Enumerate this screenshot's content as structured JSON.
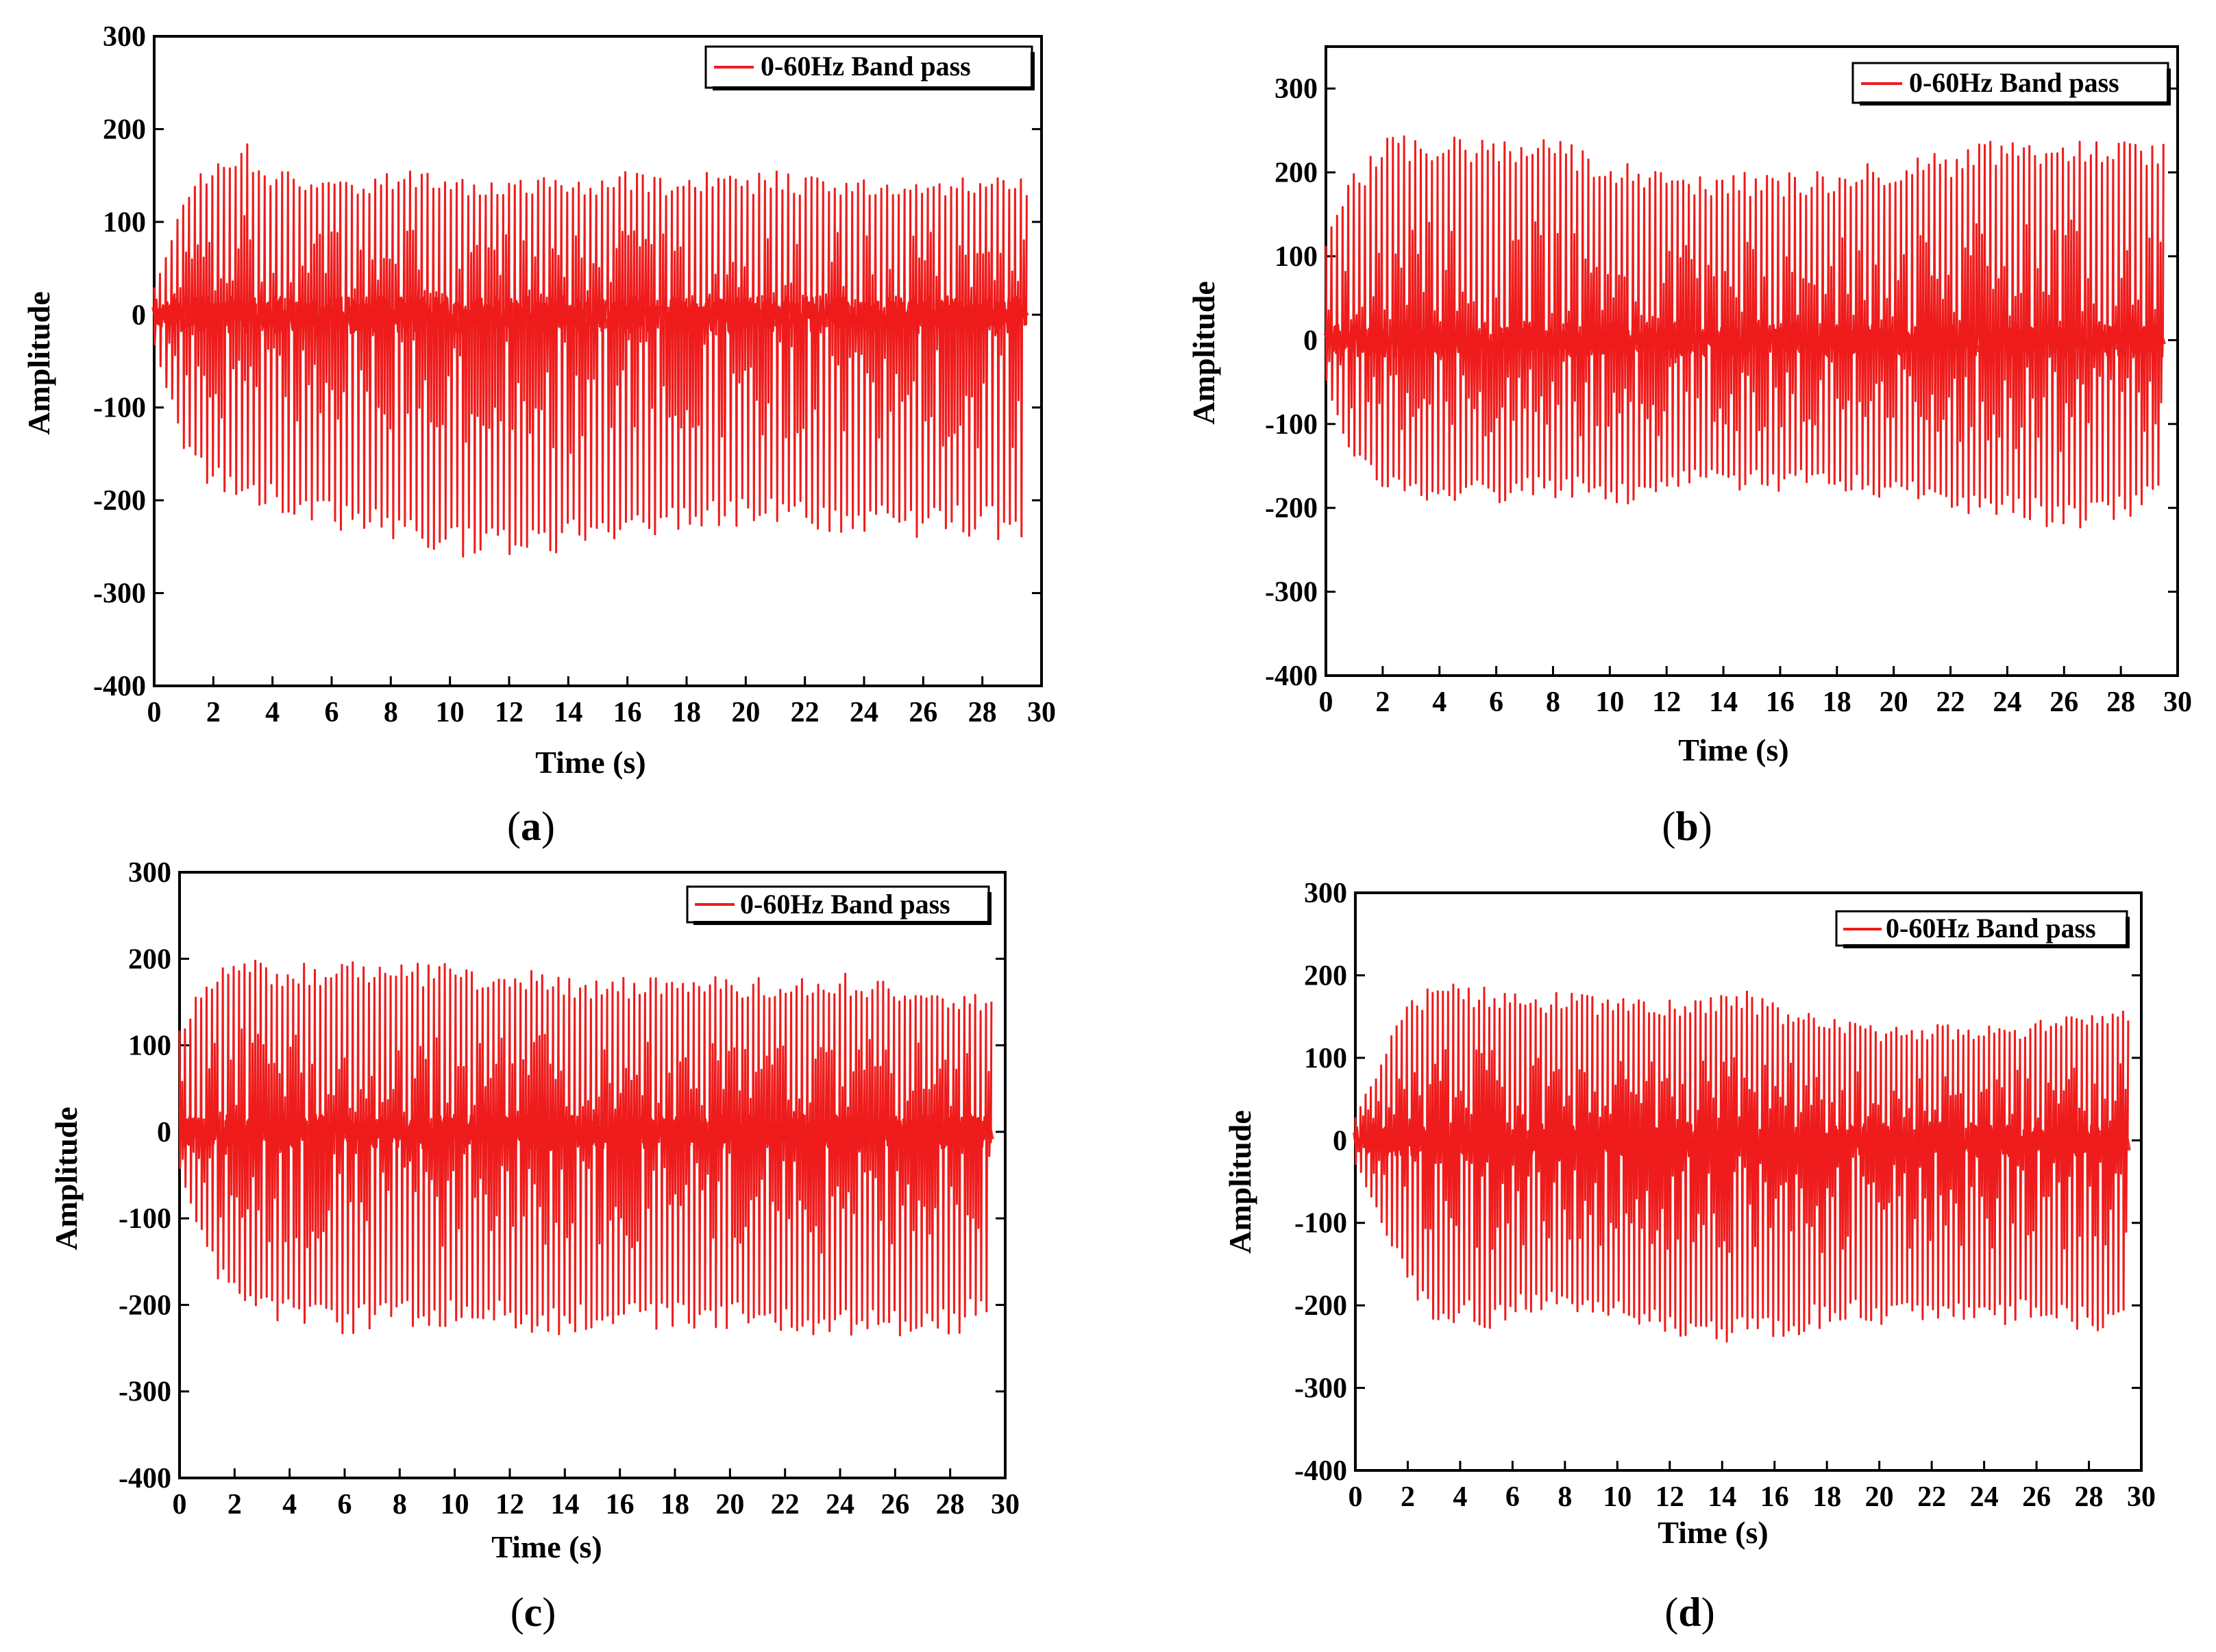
{
  "chart_data": [
    {
      "type": "line",
      "panel": "a",
      "caption_letter": "a",
      "legend": "0-60Hz Band pass",
      "xlabel": "Time (s)",
      "ylabel": "Amplitude",
      "xlim": [
        0,
        30
      ],
      "ylim": [
        -400,
        300
      ],
      "xticks": [
        "0",
        "2",
        "4",
        "6",
        "8",
        "10",
        "12",
        "14",
        "16",
        "18",
        "20",
        "22",
        "24",
        "26",
        "28",
        "30"
      ],
      "yticks": [
        "300",
        "200",
        "100",
        "0",
        "-100",
        "-200",
        "-300",
        "-400"
      ],
      "series": [
        {
          "name": "0-60Hz Band pass",
          "color": "#ee1c1c",
          "x": [
            0,
            1,
            2,
            3,
            4,
            5,
            6,
            7,
            8,
            9,
            10,
            11,
            12,
            13,
            14,
            15,
            16,
            17,
            18,
            19,
            20,
            21,
            22,
            23,
            24,
            25,
            26,
            27,
            28,
            29,
            29.5
          ],
          "upper": [
            30,
            135,
            170,
            190,
            160,
            155,
            155,
            150,
            155,
            155,
            150,
            150,
            150,
            150,
            150,
            150,
            155,
            150,
            150,
            155,
            150,
            155,
            150,
            150,
            150,
            150,
            150,
            150,
            150,
            150,
            150
          ],
          "lower": [
            -30,
            -150,
            -190,
            -200,
            -210,
            -220,
            -235,
            -240,
            -250,
            -255,
            -260,
            -270,
            -265,
            -260,
            -255,
            -245,
            -240,
            -240,
            -235,
            -235,
            -230,
            -230,
            -230,
            -235,
            -235,
            -240,
            -240,
            -240,
            -240,
            -245,
            -245
          ]
        }
      ]
    },
    {
      "type": "line",
      "panel": "b",
      "caption_letter": "b",
      "legend": "0-60Hz Band pass",
      "xlabel": "Time (s)",
      "ylabel": "Amplitude",
      "xlim": [
        0,
        30
      ],
      "ylim": [
        -400,
        350
      ],
      "xticks": [
        "0",
        "2",
        "4",
        "6",
        "8",
        "10",
        "12",
        "14",
        "16",
        "18",
        "20",
        "22",
        "24",
        "26",
        "28",
        "30"
      ],
      "yticks": [
        "300",
        "200",
        "100",
        "0",
        "-100",
        "-200",
        "-300",
        "-400"
      ],
      "series": [
        {
          "name": "0-60Hz Band pass",
          "color": "#ee1c1c",
          "x": [
            0,
            1,
            2,
            3,
            4,
            5,
            6,
            7,
            8,
            9,
            10,
            11,
            12,
            13,
            14,
            15,
            16,
            17,
            18,
            19,
            20,
            21,
            22,
            23,
            24,
            25,
            26,
            27,
            28,
            29,
            29.5
          ],
          "upper": [
            130,
            200,
            240,
            245,
            245,
            245,
            245,
            245,
            240,
            230,
            220,
            210,
            205,
            200,
            200,
            200,
            200,
            200,
            205,
            210,
            215,
            220,
            225,
            240,
            235,
            235,
            240,
            240,
            240,
            240,
            240
          ],
          "lower": [
            -50,
            -150,
            -180,
            -190,
            -195,
            -195,
            -195,
            -190,
            -190,
            -190,
            -195,
            -200,
            -185,
            -180,
            -180,
            -180,
            -180,
            -180,
            -185,
            -185,
            -190,
            -195,
            -200,
            -210,
            -215,
            -220,
            -225,
            -225,
            -215,
            -200,
            -190
          ]
        }
      ]
    },
    {
      "type": "line",
      "panel": "c",
      "caption_letter": "c",
      "legend": "0-60Hz Band pass",
      "xlabel": "Time (s)",
      "ylabel": "Amplitude",
      "xlim": [
        0,
        30
      ],
      "ylim": [
        -400,
        300
      ],
      "xticks": [
        "0",
        "2",
        "4",
        "6",
        "8",
        "10",
        "12",
        "14",
        "16",
        "18",
        "20",
        "22",
        "24",
        "26",
        "28",
        "30"
      ],
      "yticks": [
        "300",
        "200",
        "100",
        "0",
        "-100",
        "-200",
        "-300",
        "-400"
      ],
      "series": [
        {
          "name": "0-60Hz Band pass",
          "color": "#ee1c1c",
          "x": [
            0,
            1,
            2,
            3,
            4,
            5,
            6,
            7,
            8,
            9,
            10,
            11,
            12,
            13,
            14,
            15,
            16,
            17,
            18,
            19,
            20,
            21,
            22,
            23,
            24,
            25,
            26,
            27,
            28,
            29,
            29.5
          ],
          "upper": [
            130,
            175,
            205,
            200,
            195,
            195,
            195,
            200,
            195,
            195,
            195,
            190,
            190,
            190,
            180,
            180,
            180,
            180,
            180,
            180,
            180,
            180,
            180,
            180,
            185,
            180,
            175,
            170,
            165,
            160,
            160
          ],
          "lower": [
            -40,
            -150,
            -200,
            -220,
            -225,
            -230,
            -235,
            -230,
            -230,
            -225,
            -225,
            -225,
            -230,
            -235,
            -235,
            -230,
            -230,
            -230,
            -230,
            -230,
            -230,
            -230,
            -230,
            -235,
            -240,
            -240,
            -240,
            -240,
            -240,
            -220,
            -215
          ]
        }
      ]
    },
    {
      "type": "line",
      "panel": "d",
      "caption_letter": "d",
      "legend": "0-60Hz Band pass",
      "xlabel": "Time (s)",
      "ylabel": "Amplitude",
      "xlim": [
        0,
        30
      ],
      "ylim": [
        -400,
        300
      ],
      "xticks": [
        "0",
        "2",
        "4",
        "6",
        "8",
        "10",
        "12",
        "14",
        "16",
        "18",
        "20",
        "22",
        "24",
        "26",
        "28",
        "30"
      ],
      "yticks": [
        "300",
        "200",
        "100",
        "0",
        "-100",
        "-200",
        "-300",
        "-400"
      ],
      "series": [
        {
          "name": "0-60Hz Band pass",
          "color": "#ee1c1c",
          "x": [
            0,
            1,
            2,
            3,
            4,
            5,
            6,
            7,
            8,
            9,
            10,
            11,
            12,
            13,
            14,
            15,
            16,
            17,
            18,
            19,
            20,
            21,
            22,
            23,
            24,
            25,
            26,
            27,
            28,
            29,
            29.5
          ],
          "upper": [
            30,
            100,
            170,
            195,
            190,
            185,
            190,
            180,
            180,
            175,
            175,
            175,
            170,
            175,
            185,
            180,
            165,
            160,
            150,
            150,
            140,
            140,
            140,
            140,
            140,
            140,
            145,
            150,
            155,
            160,
            160
          ],
          "lower": [
            -30,
            -100,
            -180,
            -220,
            -225,
            -230,
            -220,
            -210,
            -215,
            -220,
            -225,
            -235,
            -245,
            -250,
            -250,
            -245,
            -240,
            -235,
            -230,
            -225,
            -225,
            -220,
            -220,
            -220,
            -225,
            -225,
            -225,
            -230,
            -230,
            -235,
            -235
          ]
        }
      ]
    }
  ]
}
